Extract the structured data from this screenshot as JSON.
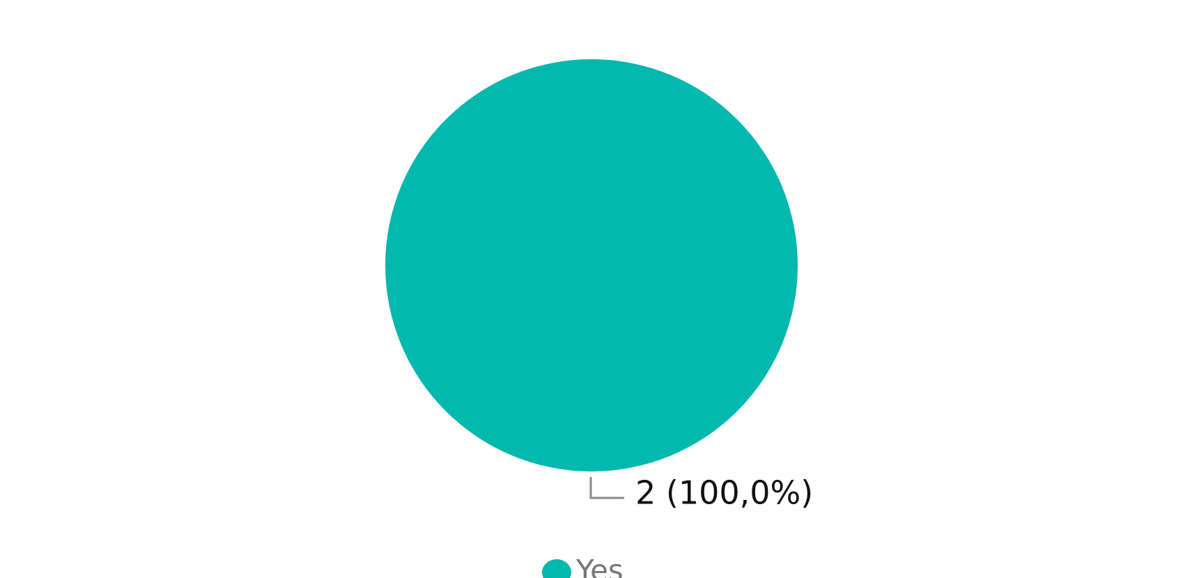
{
  "chart_data": {
    "type": "pie",
    "categories": [
      "Yes"
    ],
    "values": [
      2
    ],
    "value_labels": [
      "2 (100,0%)"
    ],
    "colors": [
      "#03b8ac"
    ],
    "legend": "bottom"
  }
}
